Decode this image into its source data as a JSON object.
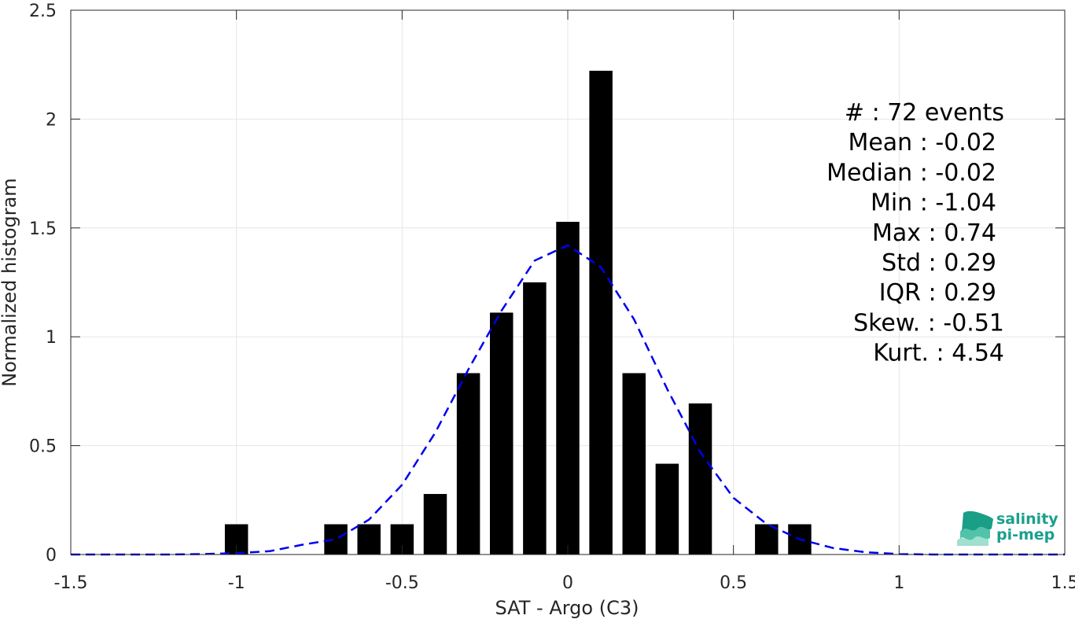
{
  "chart_data": {
    "type": "bar",
    "xlabel": "SAT - Argo (C3)",
    "ylabel": "Normalized histogram",
    "xlim": [
      -1.5,
      1.5
    ],
    "ylim": [
      0,
      2.5
    ],
    "xticks": [
      -1.5,
      -1,
      -0.5,
      0,
      0.5,
      1,
      1.5
    ],
    "xtick_labels": [
      "-1.5",
      "-1",
      "-0.5",
      "0",
      "0.5",
      "1",
      "1.5"
    ],
    "yticks": [
      0,
      0.5,
      1,
      1.5,
      2,
      2.5
    ],
    "ytick_labels": [
      "0",
      "0.5",
      "1",
      "1.5",
      "2",
      "2.5"
    ],
    "grid": true,
    "bar_width": 0.07,
    "bars": [
      {
        "x": -1.0,
        "value": 0.139
      },
      {
        "x": -0.7,
        "value": 0.139
      },
      {
        "x": -0.6,
        "value": 0.139
      },
      {
        "x": -0.5,
        "value": 0.139
      },
      {
        "x": -0.4,
        "value": 0.278
      },
      {
        "x": -0.3,
        "value": 0.833
      },
      {
        "x": -0.2,
        "value": 1.111
      },
      {
        "x": -0.1,
        "value": 1.25
      },
      {
        "x": 0.0,
        "value": 1.528
      },
      {
        "x": 0.1,
        "value": 2.222
      },
      {
        "x": 0.2,
        "value": 0.833
      },
      {
        "x": 0.3,
        "value": 0.417
      },
      {
        "x": 0.4,
        "value": 0.694
      },
      {
        "x": 0.6,
        "value": 0.139
      },
      {
        "x": 0.7,
        "value": 0.139
      }
    ],
    "bar_color": "#000000",
    "fit_curve": {
      "style": "dashed",
      "color": "#0000ee",
      "x": [
        -1.5,
        -1.2,
        -1.1,
        -1.0,
        -0.9,
        -0.8,
        -0.7,
        -0.6,
        -0.5,
        -0.4,
        -0.3,
        -0.2,
        -0.1,
        0.0,
        0.1,
        0.2,
        0.3,
        0.4,
        0.5,
        0.6,
        0.7,
        0.8,
        0.9,
        1.0,
        1.1,
        1.5
      ],
      "y": [
        0.0,
        0.0,
        0.002,
        0.006,
        0.015,
        0.045,
        0.07,
        0.16,
        0.32,
        0.56,
        0.85,
        1.12,
        1.35,
        1.42,
        1.32,
        1.08,
        0.76,
        0.47,
        0.26,
        0.14,
        0.07,
        0.03,
        0.01,
        0.002,
        0.0,
        0.0
      ]
    },
    "annotations": [
      {
        "key": "#  ",
        "value": "72 events"
      },
      {
        "key": "Mean",
        "value": "-0.02"
      },
      {
        "key": "Median",
        "value": "-0.02"
      },
      {
        "key": "Min",
        "value": "-1.04"
      },
      {
        "key": "Max",
        "value": "0.74"
      },
      {
        "key": "Std",
        "value": "0.29"
      },
      {
        "key": "IQR",
        "value": "0.29"
      },
      {
        "key": "Skew.",
        "value": "-0.51"
      },
      {
        "key": "Kurt.",
        "value": "4.54"
      }
    ]
  },
  "logo": {
    "line1": "salinity",
    "line2": "pi-mep",
    "color": "#1aa08c"
  }
}
